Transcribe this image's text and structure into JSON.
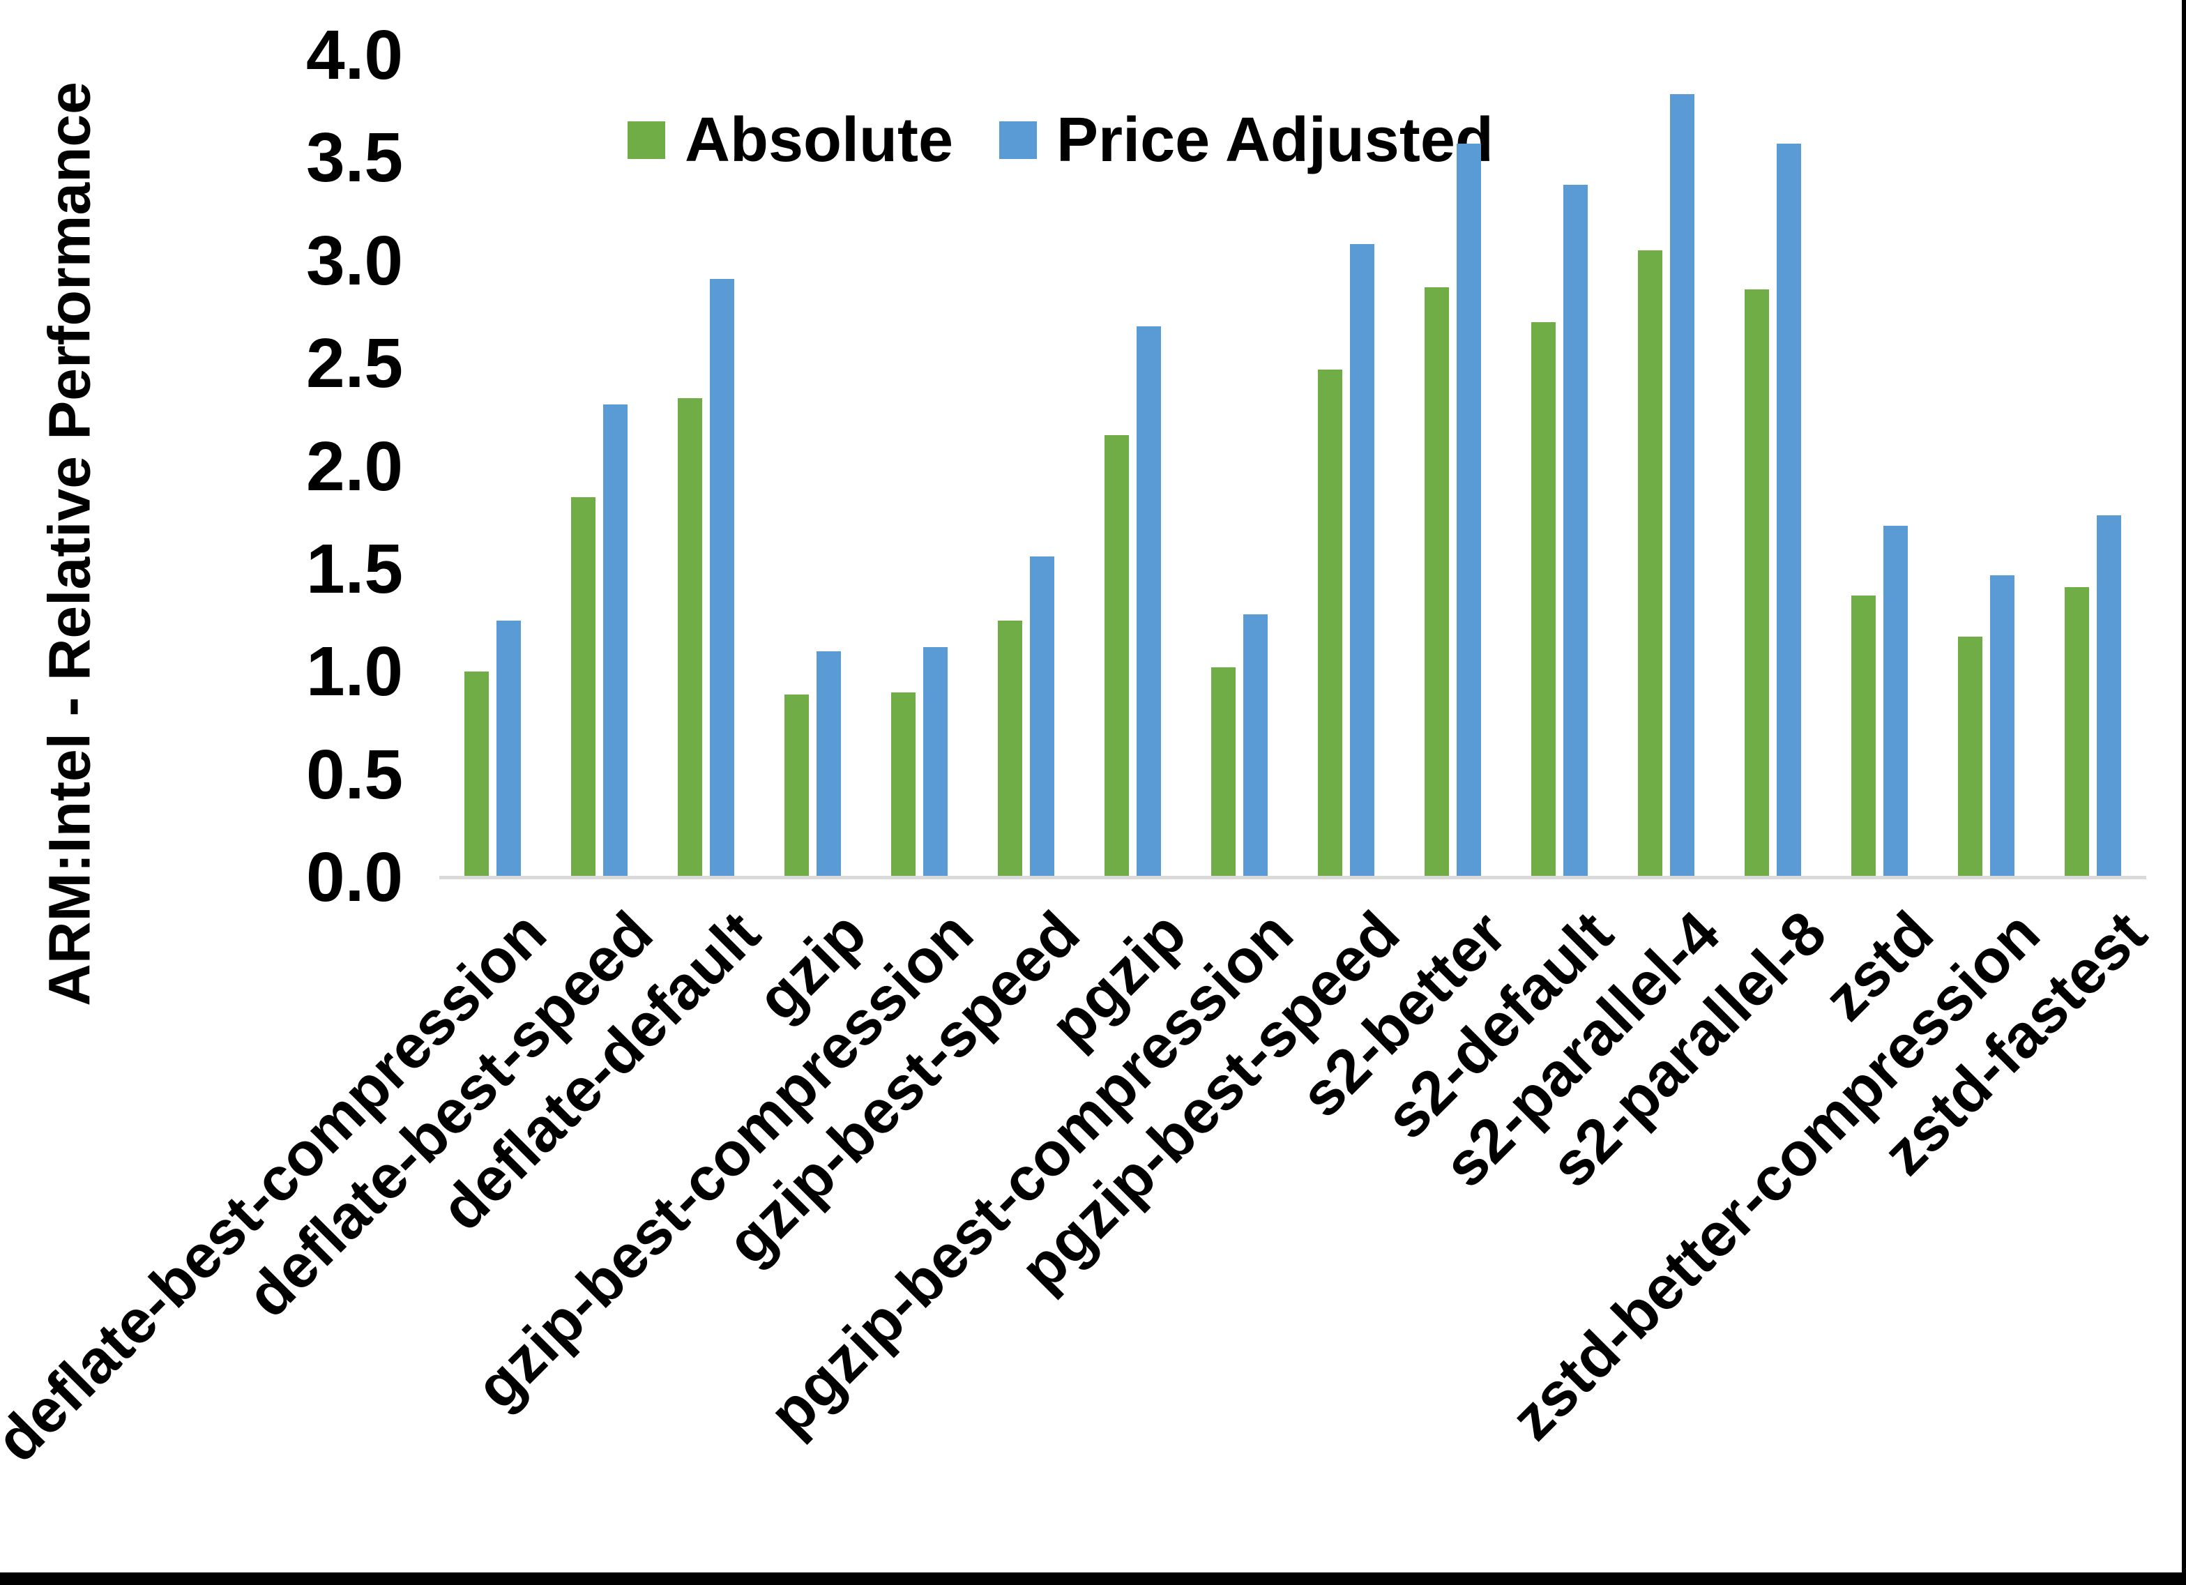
{
  "chart_data": {
    "type": "bar",
    "title": "",
    "xlabel": "",
    "ylabel": "ARM:Intel - Relative Performance",
    "ylim": [
      0.0,
      4.0
    ],
    "ytick_step": 0.5,
    "ytick_labels": [
      "0.0",
      "0.5",
      "1.0",
      "1.5",
      "2.0",
      "2.5",
      "3.0",
      "3.5",
      "4.0"
    ],
    "grid": false,
    "legend_position": "top-center",
    "axis_line_color": "#D9D9D9",
    "text_color": "#000000",
    "categories": [
      "deflate-best-compression",
      "deflate-best-speed",
      "deflate-default",
      "gzip",
      "gzip-best-compression",
      "gzip-best-speed",
      "pgzip",
      "pgzip-best-compression",
      "pgzip-best-speed",
      "s2-better",
      "s2-default",
      "s2-parallel-4",
      "s2-parallel-8",
      "zstd",
      "zstd-better-compression",
      "zstd-fastest"
    ],
    "series": [
      {
        "name": "Absolute",
        "color": "#70AD47",
        "values": [
          1.0,
          1.85,
          2.33,
          0.89,
          0.9,
          1.25,
          2.15,
          1.02,
          2.47,
          2.87,
          2.7,
          3.05,
          2.86,
          1.37,
          1.17,
          1.41
        ]
      },
      {
        "name": "Price Adjusted",
        "color": "#5B9BD5",
        "values": [
          1.25,
          2.3,
          2.91,
          1.1,
          1.12,
          1.56,
          2.68,
          1.28,
          3.08,
          3.57,
          3.37,
          3.81,
          3.57,
          1.71,
          1.47,
          1.76
        ]
      }
    ]
  }
}
